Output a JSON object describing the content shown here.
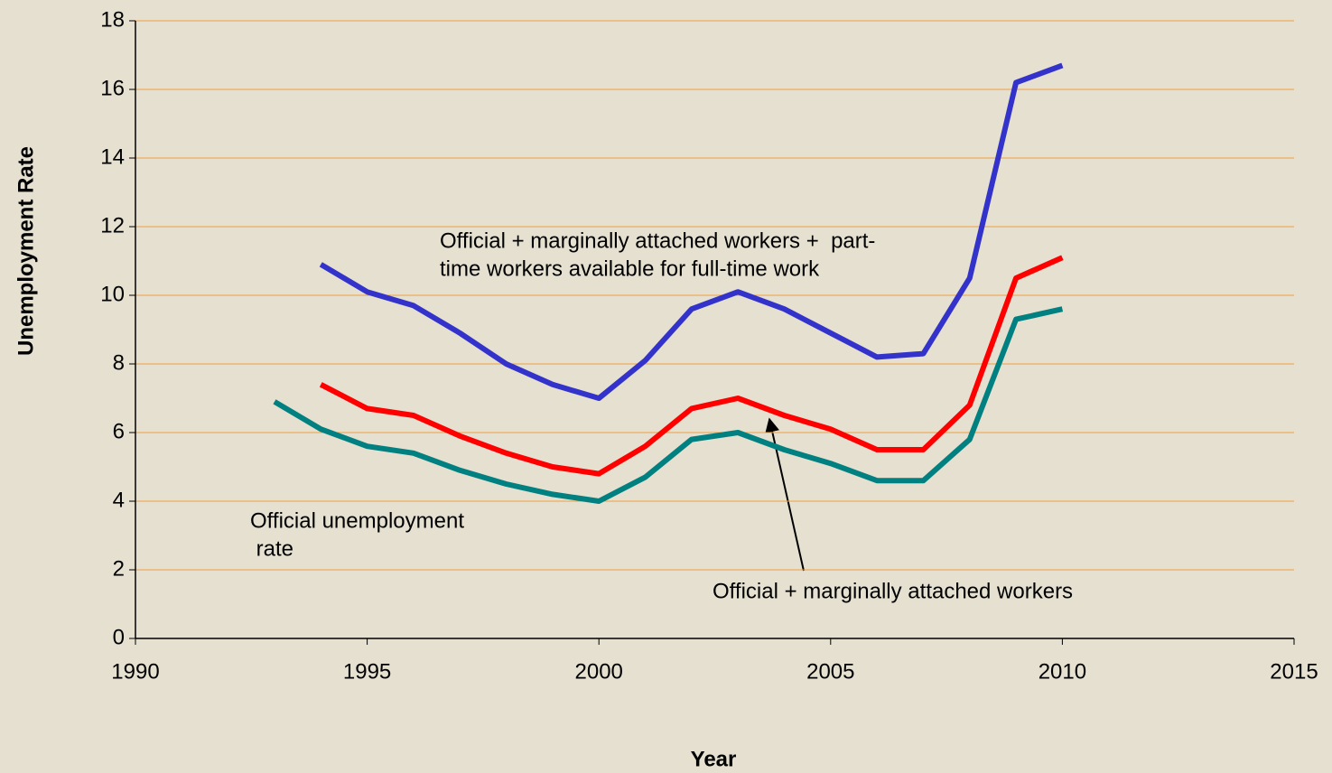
{
  "chart_data": {
    "type": "line",
    "x_label": "Year",
    "y_label": "Unemployment Rate",
    "x": [
      1993,
      1994,
      1995,
      1996,
      1997,
      1998,
      1999,
      2000,
      2001,
      2002,
      2003,
      2004,
      2005,
      2006,
      2007,
      2008,
      2009,
      2010
    ],
    "series": [
      {
        "color": "#3333cc",
        "values": [
          null,
          10.9,
          10.1,
          9.7,
          8.9,
          8.0,
          7.4,
          7.0,
          8.1,
          9.6,
          10.1,
          9.6,
          8.9,
          8.2,
          8.3,
          10.5,
          16.2,
          16.7
        ]
      },
      {
        "color": "#ff0000",
        "values": [
          null,
          7.4,
          6.7,
          6.5,
          5.9,
          5.4,
          5.0,
          4.8,
          5.6,
          6.7,
          7.0,
          6.5,
          6.1,
          5.5,
          5.5,
          6.8,
          10.5,
          11.1
        ]
      },
      {
        "color": "#008080",
        "values": [
          6.9,
          6.1,
          5.6,
          5.4,
          4.9,
          4.5,
          4.2,
          4.0,
          4.7,
          5.8,
          6.0,
          5.5,
          5.1,
          4.6,
          4.6,
          5.8,
          9.3,
          9.6
        ]
      }
    ],
    "annotations": [
      {
        "lines": [
          "Official + marginally attached workers +  part-",
          "time workers available for full-time work"
        ]
      },
      {
        "lines": [
          "Official + marginally attached workers"
        ]
      },
      {
        "lines": [
          "Official unemployment",
          " rate"
        ]
      }
    ],
    "xlim": [
      1990,
      2015
    ],
    "xticks": [
      1990,
      1995,
      2000,
      2005,
      2010,
      2015
    ],
    "ylim": [
      0,
      18
    ],
    "yticks": [
      0,
      2,
      4,
      6,
      8,
      10,
      12,
      14,
      16,
      18
    ],
    "grid": true
  }
}
